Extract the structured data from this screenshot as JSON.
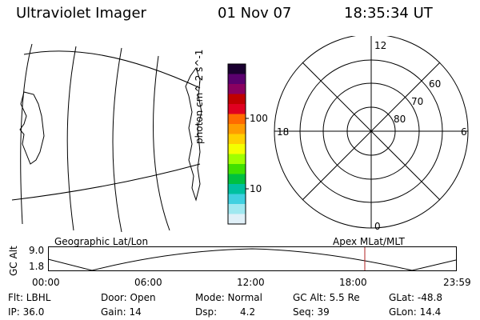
{
  "header": {
    "instrument": "Ultraviolet Imager",
    "date": "01 Nov 07",
    "time": "18:35:34 UT"
  },
  "colorbar": {
    "unit_label": "photon cm^-2 s^-1",
    "tick_100": "100",
    "tick_10": "10",
    "colors": [
      "#1a0030",
      "#5a006e",
      "#8a0060",
      "#c00000",
      "#e00020",
      "#ff6a00",
      "#ff9c00",
      "#ffd000",
      "#f4ff00",
      "#a0ff00",
      "#40e000",
      "#00c040",
      "#00c0a0",
      "#40d0e0",
      "#a0e8f0",
      "#e0f0f8"
    ]
  },
  "polar": {
    "mlt_12": "12",
    "mlt_18": "18",
    "mlt_6": "6",
    "mlt_0": "0",
    "lat_60": "60",
    "lat_70": "70",
    "lat_80": "80"
  },
  "timeline": {
    "left_label": "Geographic Lat/Lon",
    "right_label": "Apex MLat/MLT",
    "axis_title": "GC Alt",
    "y_top": "9.0",
    "y_bottom": "1.8",
    "ticks": [
      "00:00",
      "06:00",
      "12:00",
      "18:00",
      "23:59"
    ],
    "marker_color": "#b02020"
  },
  "info": {
    "flt": "Flt: LBHL",
    "door": "Door: Open",
    "mode": "Mode: Normal",
    "gcalt": "GC Alt: 5.5 Re",
    "glat": "GLat: -48.8",
    "ip": "IP: 36.0",
    "gain": "Gain: 14",
    "dsp_label": "Dsp:",
    "dsp_value": "4.2",
    "seq": "Seq: 39",
    "glon": "GLon:  14.4"
  }
}
